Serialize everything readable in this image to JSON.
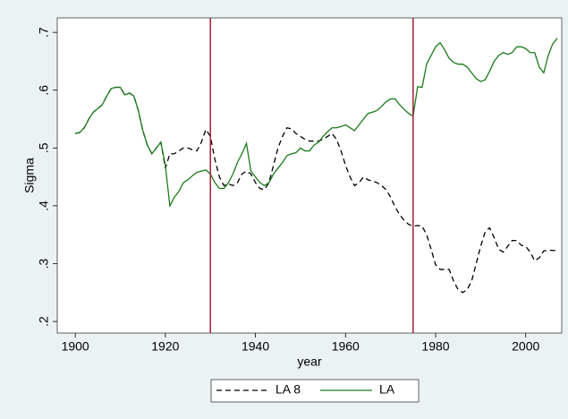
{
  "chart_data": {
    "type": "line",
    "xlabel": "year",
    "ylabel": "Sigma",
    "xlim": [
      1896,
      2008
    ],
    "ylim": [
      0.18,
      0.725
    ],
    "xticks": [
      1900,
      1920,
      1940,
      1960,
      1980,
      2000
    ],
    "yticks": [
      {
        "value": 0.2,
        "label": ".2"
      },
      {
        "value": 0.3,
        "label": ".3"
      },
      {
        "value": 0.4,
        "label": ".4"
      },
      {
        "value": 0.5,
        "label": ".5"
      },
      {
        "value": 0.6,
        "label": ".6"
      },
      {
        "value": 0.7,
        "label": ".7"
      }
    ],
    "xlines": [
      1930,
      1975
    ],
    "xline_color": "#a51d37",
    "legend": "bottom",
    "x": [
      1900,
      1901,
      1902,
      1903,
      1904,
      1905,
      1906,
      1907,
      1908,
      1909,
      1910,
      1911,
      1912,
      1913,
      1914,
      1915,
      1916,
      1917,
      1918,
      1919,
      1920,
      1921,
      1922,
      1923,
      1924,
      1925,
      1926,
      1927,
      1928,
      1929,
      1930,
      1931,
      1932,
      1933,
      1934,
      1935,
      1936,
      1937,
      1938,
      1939,
      1940,
      1941,
      1942,
      1943,
      1944,
      1945,
      1946,
      1947,
      1948,
      1949,
      1950,
      1951,
      1952,
      1953,
      1954,
      1955,
      1956,
      1957,
      1958,
      1959,
      1960,
      1961,
      1962,
      1963,
      1964,
      1965,
      1966,
      1967,
      1968,
      1969,
      1970,
      1971,
      1972,
      1973,
      1974,
      1975,
      1976,
      1977,
      1978,
      1979,
      1980,
      1981,
      1982,
      1983,
      1984,
      1985,
      1986,
      1987,
      1988,
      1989,
      1990,
      1991,
      1992,
      1993,
      1994,
      1995,
      1996,
      1997,
      1998,
      1999,
      2000,
      2001,
      2002,
      2003,
      2004,
      2005,
      2006,
      2007
    ],
    "series": [
      {
        "name": "LA 8",
        "color": "#000000",
        "style": "dashed",
        "values": [
          0.525,
          0.527,
          0.535,
          0.55,
          0.562,
          0.568,
          0.575,
          0.59,
          0.603,
          0.605,
          0.605,
          0.592,
          0.595,
          0.59,
          0.565,
          0.53,
          0.505,
          0.49,
          0.5,
          0.51,
          0.465,
          0.49,
          0.49,
          0.495,
          0.5,
          0.5,
          0.497,
          0.495,
          0.51,
          0.532,
          0.52,
          0.48,
          0.45,
          0.435,
          0.438,
          0.435,
          0.44,
          0.455,
          0.46,
          0.455,
          0.44,
          0.43,
          0.428,
          0.44,
          0.47,
          0.5,
          0.52,
          0.535,
          0.533,
          0.525,
          0.52,
          0.515,
          0.512,
          0.512,
          0.512,
          0.515,
          0.52,
          0.525,
          0.515,
          0.495,
          0.47,
          0.45,
          0.435,
          0.44,
          0.45,
          0.445,
          0.443,
          0.44,
          0.435,
          0.428,
          0.415,
          0.398,
          0.385,
          0.375,
          0.368,
          0.365,
          0.366,
          0.365,
          0.35,
          0.325,
          0.298,
          0.29,
          0.29,
          0.29,
          0.27,
          0.255,
          0.25,
          0.255,
          0.27,
          0.3,
          0.33,
          0.355,
          0.362,
          0.345,
          0.325,
          0.32,
          0.33,
          0.34,
          0.34,
          0.332,
          0.33,
          0.32,
          0.305,
          0.31,
          0.322,
          0.323,
          0.323,
          0.322
        ]
      },
      {
        "name": "LA",
        "color": "#1a7a1a",
        "style": "solid",
        "values": [
          0.525,
          0.527,
          0.535,
          0.55,
          0.562,
          0.568,
          0.575,
          0.59,
          0.603,
          0.605,
          0.605,
          0.592,
          0.595,
          0.59,
          0.565,
          0.53,
          0.505,
          0.49,
          0.5,
          0.51,
          0.47,
          0.4,
          0.415,
          0.425,
          0.44,
          0.445,
          0.452,
          0.458,
          0.46,
          0.462,
          0.455,
          0.44,
          0.43,
          0.43,
          0.44,
          0.455,
          0.475,
          0.49,
          0.508,
          0.46,
          0.45,
          0.44,
          0.435,
          0.44,
          0.455,
          0.465,
          0.475,
          0.487,
          0.49,
          0.492,
          0.5,
          0.495,
          0.495,
          0.505,
          0.51,
          0.52,
          0.528,
          0.535,
          0.535,
          0.537,
          0.54,
          0.535,
          0.53,
          0.54,
          0.55,
          0.56,
          0.562,
          0.565,
          0.572,
          0.58,
          0.585,
          0.585,
          0.575,
          0.567,
          0.56,
          0.555,
          0.606,
          0.605,
          0.645,
          0.66,
          0.675,
          0.682,
          0.67,
          0.655,
          0.648,
          0.645,
          0.645,
          0.64,
          0.63,
          0.62,
          0.615,
          0.618,
          0.633,
          0.65,
          0.66,
          0.665,
          0.662,
          0.665,
          0.675,
          0.675,
          0.672,
          0.665,
          0.665,
          0.64,
          0.63,
          0.66,
          0.68,
          0.69
        ]
      }
    ]
  }
}
